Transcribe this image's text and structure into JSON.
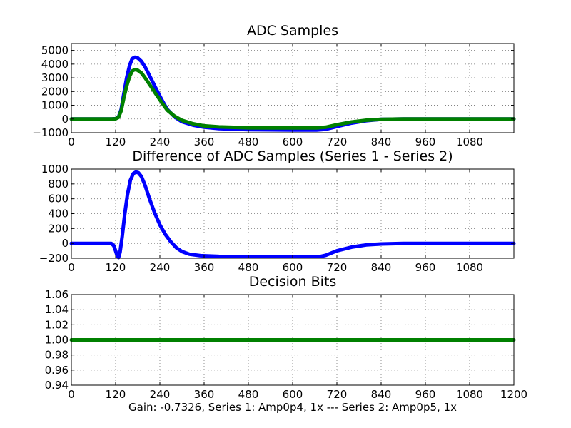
{
  "figure_xlabel": "Gain: -0.7326, Series 1: Amp0p4, 1x --- Series 2: Amp0p5, 1x",
  "colors": {
    "series1": "#0000ff",
    "series2": "#008000"
  },
  "chart_data": [
    {
      "type": "line",
      "title": "ADC Samples",
      "xlim": [
        0,
        1200
      ],
      "ylim": [
        -1000,
        5500
      ],
      "xticks": [
        0,
        120,
        240,
        360,
        480,
        600,
        720,
        840,
        960,
        1080
      ],
      "xtick_labels": [
        "0",
        "120",
        "240",
        "360",
        "480",
        "600",
        "720",
        "840",
        "960",
        "1080"
      ],
      "yticks": [
        -1000,
        0,
        1000,
        2000,
        3000,
        4000,
        5000
      ],
      "ytick_labels": [
        "−1000",
        "0",
        "1000",
        "2000",
        "3000",
        "4000",
        "5000"
      ],
      "grid": true,
      "series": [
        {
          "name": "Series 1",
          "color": "#0000ff",
          "points": [
            [
              0,
              0
            ],
            [
              110,
              0
            ],
            [
              120,
              20
            ],
            [
              128,
              150
            ],
            [
              135,
              700
            ],
            [
              142,
              1800
            ],
            [
              150,
              3000
            ],
            [
              158,
              3900
            ],
            [
              165,
              4400
            ],
            [
              172,
              4500
            ],
            [
              180,
              4450
            ],
            [
              190,
              4200
            ],
            [
              200,
              3800
            ],
            [
              215,
              3000
            ],
            [
              230,
              2200
            ],
            [
              245,
              1400
            ],
            [
              260,
              700
            ],
            [
              280,
              150
            ],
            [
              300,
              -200
            ],
            [
              330,
              -450
            ],
            [
              360,
              -600
            ],
            [
              400,
              -700
            ],
            [
              480,
              -780
            ],
            [
              600,
              -800
            ],
            [
              665,
              -800
            ],
            [
              690,
              -750
            ],
            [
              720,
              -550
            ],
            [
              760,
              -300
            ],
            [
              800,
              -120
            ],
            [
              840,
              -30
            ],
            [
              900,
              0
            ],
            [
              1200,
              0
            ]
          ]
        },
        {
          "name": "Series 2",
          "color": "#008000",
          "points": [
            [
              0,
              0
            ],
            [
              110,
              0
            ],
            [
              120,
              15
            ],
            [
              128,
              120
            ],
            [
              135,
              600
            ],
            [
              142,
              1500
            ],
            [
              150,
              2400
            ],
            [
              158,
              3100
            ],
            [
              165,
              3500
            ],
            [
              172,
              3600
            ],
            [
              180,
              3550
            ],
            [
              190,
              3350
            ],
            [
              200,
              3000
            ],
            [
              215,
              2400
            ],
            [
              230,
              1800
            ],
            [
              245,
              1200
            ],
            [
              260,
              650
            ],
            [
              280,
              200
            ],
            [
              300,
              -100
            ],
            [
              330,
              -350
            ],
            [
              360,
              -500
            ],
            [
              400,
              -580
            ],
            [
              480,
              -640
            ],
            [
              600,
              -650
            ],
            [
              665,
              -650
            ],
            [
              690,
              -600
            ],
            [
              720,
              -420
            ],
            [
              760,
              -220
            ],
            [
              800,
              -90
            ],
            [
              840,
              -20
            ],
            [
              900,
              0
            ],
            [
              1200,
              0
            ]
          ]
        }
      ]
    },
    {
      "type": "line",
      "title": "Difference of ADC Samples (Series 1 - Series 2)",
      "xlim": [
        0,
        1200
      ],
      "ylim": [
        -200,
        1000
      ],
      "xticks": [
        0,
        120,
        240,
        360,
        480,
        600,
        720,
        840,
        960,
        1080
      ],
      "xtick_labels": [
        "0",
        "120",
        "240",
        "360",
        "480",
        "600",
        "720",
        "840",
        "960",
        "1080"
      ],
      "yticks": [
        -200,
        0,
        200,
        400,
        600,
        800,
        1000
      ],
      "ytick_labels": [
        "−200",
        "0",
        "200",
        "400",
        "600",
        "800",
        "1000"
      ],
      "grid": true,
      "series": [
        {
          "name": "Difference",
          "color": "#0000ff",
          "points": [
            [
              0,
              0
            ],
            [
              108,
              0
            ],
            [
              115,
              -30
            ],
            [
              120,
              -100
            ],
            [
              124,
              -165
            ],
            [
              128,
              -190
            ],
            [
              132,
              -120
            ],
            [
              138,
              100
            ],
            [
              145,
              400
            ],
            [
              152,
              650
            ],
            [
              160,
              850
            ],
            [
              168,
              940
            ],
            [
              175,
              960
            ],
            [
              182,
              950
            ],
            [
              190,
              900
            ],
            [
              200,
              780
            ],
            [
              212,
              600
            ],
            [
              225,
              420
            ],
            [
              240,
              250
            ],
            [
              255,
              120
            ],
            [
              270,
              20
            ],
            [
              285,
              -60
            ],
            [
              300,
              -110
            ],
            [
              320,
              -145
            ],
            [
              350,
              -165
            ],
            [
              400,
              -175
            ],
            [
              500,
              -178
            ],
            [
              650,
              -180
            ],
            [
              672,
              -180
            ],
            [
              690,
              -160
            ],
            [
              720,
              -100
            ],
            [
              760,
              -50
            ],
            [
              800,
              -20
            ],
            [
              840,
              -8
            ],
            [
              900,
              0
            ],
            [
              1200,
              0
            ]
          ]
        }
      ]
    },
    {
      "type": "line",
      "title": "Decision Bits",
      "xlim": [
        0,
        1200
      ],
      "ylim": [
        0.94,
        1.06
      ],
      "xticks": [
        0,
        120,
        240,
        360,
        480,
        600,
        720,
        840,
        960,
        1080,
        1200
      ],
      "xtick_labels": [
        "0",
        "120",
        "240",
        "360",
        "480",
        "600",
        "720",
        "840",
        "960",
        "1080",
        "1200"
      ],
      "yticks": [
        0.94,
        0.96,
        0.98,
        1.0,
        1.02,
        1.04,
        1.06
      ],
      "ytick_labels": [
        "0.94",
        "0.96",
        "0.98",
        "1.00",
        "1.02",
        "1.04",
        "1.06"
      ],
      "grid": true,
      "series": [
        {
          "name": "Decision Bits",
          "color": "#008000",
          "points": [
            [
              0,
              1.0
            ],
            [
              1200,
              1.0
            ]
          ]
        }
      ]
    }
  ]
}
